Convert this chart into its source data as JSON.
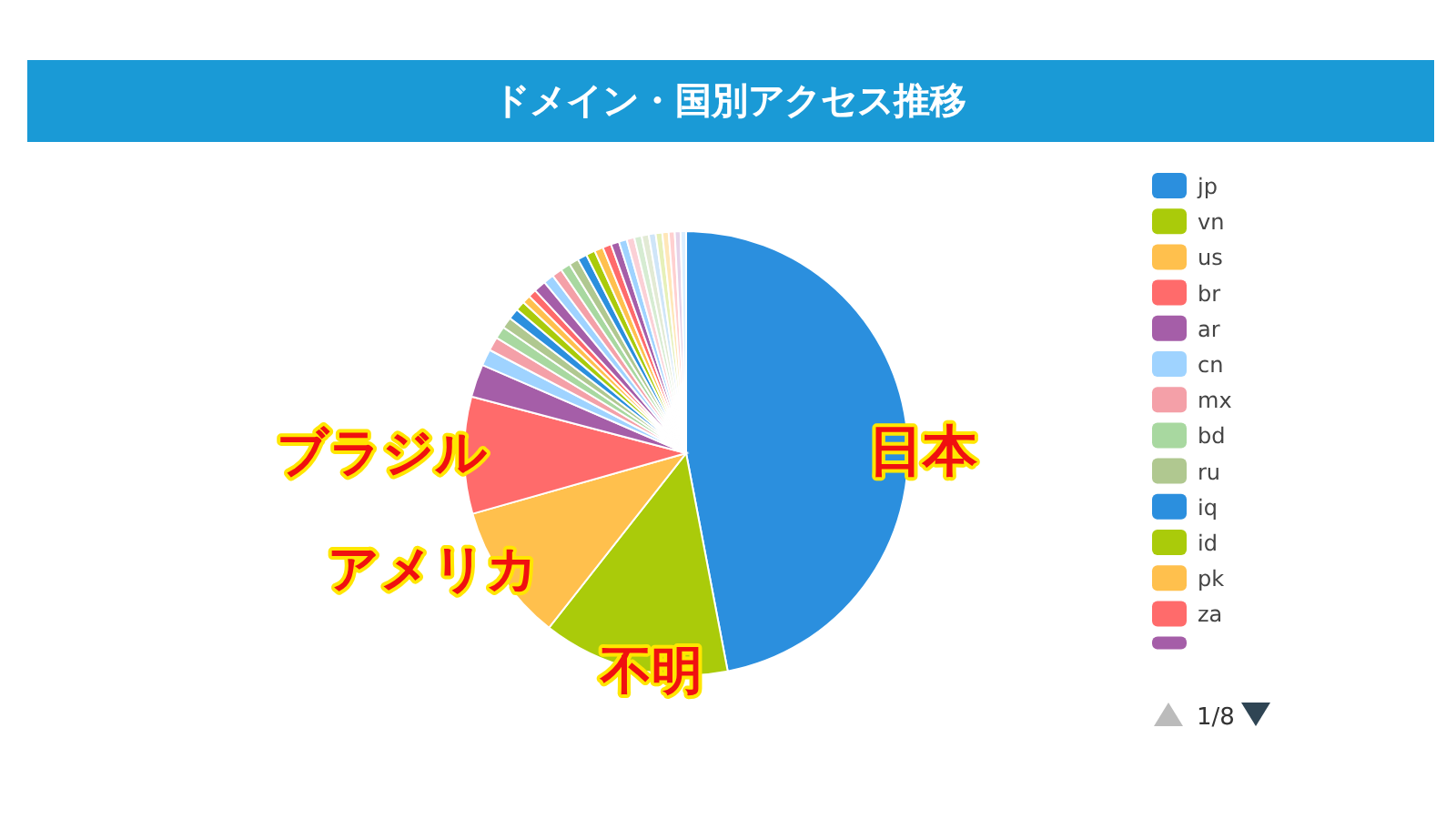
{
  "chart_data": {
    "type": "pie",
    "title": "ドメイン・国別アクセス推移",
    "legend": "right",
    "categories": [
      "jp",
      "vn",
      "us",
      "br",
      "ar",
      "cn",
      "mx",
      "bd",
      "ru",
      "iq",
      "id",
      "pk",
      "za",
      null,
      null,
      null,
      null,
      null,
      null,
      null,
      null,
      null,
      null,
      null,
      null,
      null,
      null,
      null,
      null,
      null,
      null,
      null,
      null
    ],
    "values": [
      47,
      13.6,
      10,
      8.5,
      2.4,
      1.2,
      1,
      0.9,
      0.8,
      0.8,
      0.7,
      0.6,
      0.6,
      0.88,
      0.76,
      0.74,
      0.72,
      0.7,
      0.68,
      0.66,
      0.64,
      0.62,
      0.6,
      0.58,
      0.56,
      0.54,
      0.52,
      0.5,
      0.48,
      0.46,
      0.44,
      0.42,
      0.4
    ],
    "colors": [
      "#2b8fde",
      "#aacb0a",
      "#ffc04d",
      "#ff6b6b",
      "#a55ea8",
      "#9fd3ff",
      "#f4a0a8",
      "#a8d8a0",
      "#b0c890",
      "#2b8fde",
      "#aacb0a",
      "#ffc04d",
      "#ff6b6b",
      "#a55ea8",
      "#9fd3ff",
      "#f4a0a8",
      "#a8d8a0",
      "#b0c890",
      "#2b8fde",
      "#aacb0a",
      "#ffc04d",
      "#ff6b6b",
      "#a55ea8",
      "#9fd3ff",
      "#fbd0d6",
      "#d6ecd2",
      "#e2ead4",
      "#cfe5f8",
      "#e6f0b8",
      "#ffe7b8",
      "#ffd0d0",
      "#e6d2e8",
      "#dcefff"
    ],
    "annotations": [
      "日本",
      "不明",
      "アメリカ",
      "ブラジル",
      "1/8"
    ]
  }
}
